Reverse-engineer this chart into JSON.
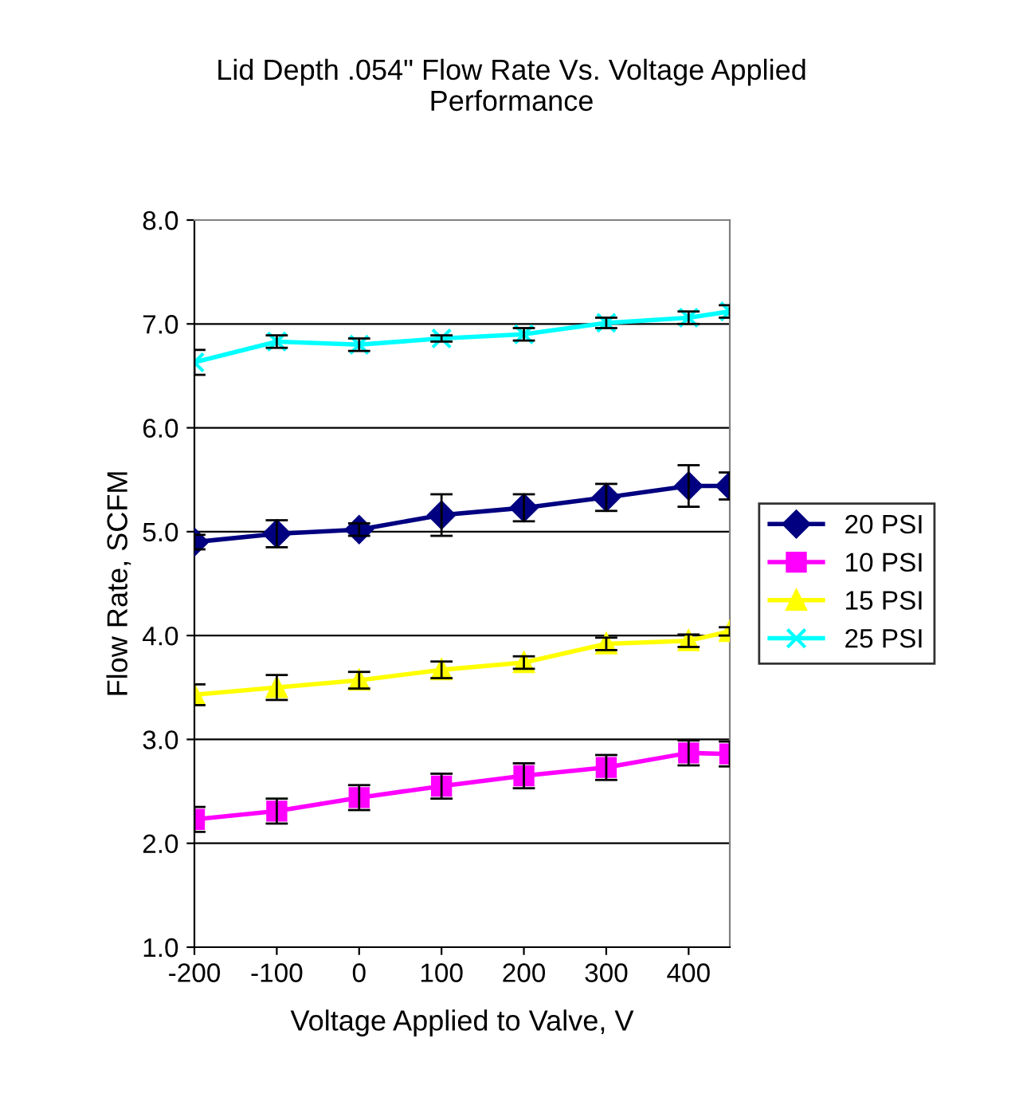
{
  "chart_data": {
    "type": "line",
    "title": "Lid Depth .054\" Flow Rate Vs. Voltage Applied\nPerformance",
    "xlabel": "Voltage Applied to Valve, V",
    "ylabel": "Flow Rate, SCFM",
    "x": [
      -200,
      -100,
      0,
      100,
      200,
      300,
      400,
      450
    ],
    "series": [
      {
        "name": "20 PSI",
        "color": "#000080",
        "marker": "diamond",
        "values": [
          4.9,
          4.98,
          5.02,
          5.16,
          5.23,
          5.33,
          5.44,
          5.44
        ],
        "errors": [
          0.07,
          0.13,
          0.06,
          0.2,
          0.13,
          0.13,
          0.2,
          0.13
        ]
      },
      {
        "name": "10 PSI",
        "color": "#ff00ff",
        "marker": "square",
        "values": [
          2.23,
          2.31,
          2.44,
          2.55,
          2.65,
          2.73,
          2.87,
          2.86
        ],
        "errors": [
          0.12,
          0.12,
          0.12,
          0.12,
          0.12,
          0.12,
          0.12,
          0.12
        ]
      },
      {
        "name": "15 PSI",
        "color": "#ffff00",
        "marker": "triangle",
        "values": [
          3.43,
          3.5,
          3.57,
          3.67,
          3.74,
          3.92,
          3.95,
          4.04
        ],
        "errors": [
          0.1,
          0.12,
          0.08,
          0.08,
          0.06,
          0.06,
          0.06,
          0.04
        ]
      },
      {
        "name": "25 PSI",
        "color": "#00ffff",
        "marker": "cross",
        "values": [
          6.63,
          6.83,
          6.8,
          6.86,
          6.9,
          7.01,
          7.06,
          7.12
        ],
        "errors": [
          0.12,
          0.06,
          0.06,
          0.03,
          0.06,
          0.05,
          0.06,
          0.06
        ]
      }
    ],
    "xlim": [
      -200,
      450
    ],
    "xticks": [
      -200,
      -100,
      0,
      100,
      200,
      300,
      400
    ],
    "ylim": [
      1.0,
      8.0
    ],
    "yticks": [
      {
        "value": 1,
        "label": "1.0"
      },
      {
        "value": 2,
        "label": "2.0"
      },
      {
        "value": 3,
        "label": "3.0"
      },
      {
        "value": 4,
        "label": "4.0"
      },
      {
        "value": 5,
        "label": "5.0"
      },
      {
        "value": 6,
        "label": "6.0"
      },
      {
        "value": 7,
        "label": "7.0"
      },
      {
        "value": 8,
        "label": "8.0"
      }
    ],
    "grid": "y",
    "legend": "right",
    "line_style": "solid"
  }
}
